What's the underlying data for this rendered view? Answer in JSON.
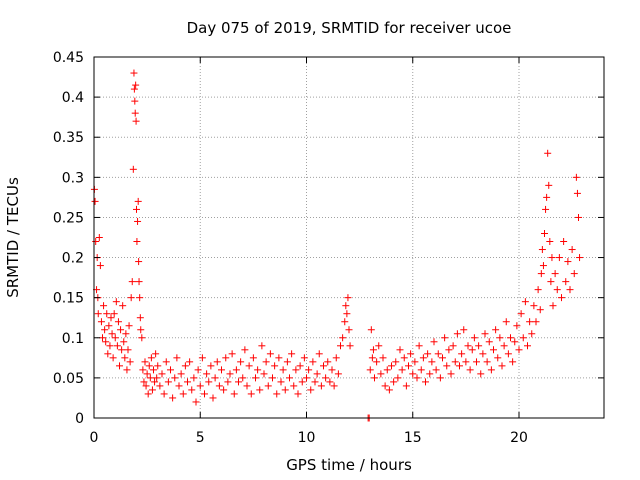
{
  "chart_data": {
    "type": "scatter",
    "title": "Day 075 of 2019, SRMTID for receiver ucoe",
    "xlabel": "GPS time / hours",
    "ylabel": "SRMTID / TECUs",
    "xlim": [
      0,
      24
    ],
    "ylim": [
      0,
      0.45
    ],
    "x_ticks": [
      0,
      5,
      10,
      15,
      20
    ],
    "x_tick_labels": [
      "0",
      "5",
      "10",
      "15",
      "20"
    ],
    "y_ticks": [
      0,
      0.05,
      0.1,
      0.15,
      0.2,
      0.25,
      0.3,
      0.35,
      0.4,
      0.45
    ],
    "y_tick_labels": [
      "0",
      "0.05",
      "0.1",
      "0.15",
      "0.2",
      "0.25",
      "0.3",
      "0.35",
      "0.4",
      "0.45"
    ],
    "grid": true,
    "marker": "+",
    "series": [
      {
        "name": "SRMTID",
        "color": "#ff0000",
        "points": [
          [
            0.02,
            0.285
          ],
          [
            0.05,
            0.27
          ],
          [
            0.08,
            0.22
          ],
          [
            0.12,
            0.16
          ],
          [
            0.15,
            0.2
          ],
          [
            0.18,
            0.15
          ],
          [
            0.2,
            0.13
          ],
          [
            0.25,
            0.225
          ],
          [
            0.3,
            0.19
          ],
          [
            0.35,
            0.12
          ],
          [
            0.4,
            0.1
          ],
          [
            0.45,
            0.14
          ],
          [
            0.5,
            0.11
          ],
          [
            0.55,
            0.095
          ],
          [
            0.6,
            0.13
          ],
          [
            0.65,
            0.08
          ],
          [
            0.7,
            0.115
          ],
          [
            0.75,
            0.09
          ],
          [
            0.8,
            0.125
          ],
          [
            0.85,
            0.105
          ],
          [
            0.9,
            0.075
          ],
          [
            0.95,
            0.13
          ],
          [
            1.0,
            0.1
          ],
          [
            1.05,
            0.145
          ],
          [
            1.1,
            0.09
          ],
          [
            1.15,
            0.12
          ],
          [
            1.2,
            0.065
          ],
          [
            1.25,
            0.11
          ],
          [
            1.3,
            0.085
          ],
          [
            1.35,
            0.14
          ],
          [
            1.4,
            0.095
          ],
          [
            1.45,
            0.075
          ],
          [
            1.5,
            0.105
          ],
          [
            1.55,
            0.06
          ],
          [
            1.6,
            0.085
          ],
          [
            1.65,
            0.115
          ],
          [
            1.7,
            0.07
          ],
          [
            1.75,
            0.15
          ],
          [
            1.8,
            0.17
          ],
          [
            1.85,
            0.31
          ],
          [
            1.88,
            0.43
          ],
          [
            1.9,
            0.41
          ],
          [
            1.92,
            0.395
          ],
          [
            1.94,
            0.38
          ],
          [
            1.96,
            0.415
          ],
          [
            1.98,
            0.37
          ],
          [
            2.0,
            0.26
          ],
          [
            2.02,
            0.22
          ],
          [
            2.05,
            0.245
          ],
          [
            2.08,
            0.27
          ],
          [
            2.1,
            0.195
          ],
          [
            2.12,
            0.17
          ],
          [
            2.15,
            0.15
          ],
          [
            2.18,
            0.125
          ],
          [
            2.2,
            0.11
          ],
          [
            2.25,
            0.1
          ],
          [
            2.3,
            0.06
          ],
          [
            2.35,
            0.045
          ],
          [
            2.4,
            0.07
          ],
          [
            2.45,
            0.04
          ],
          [
            2.5,
            0.055
          ],
          [
            2.55,
            0.03
          ],
          [
            2.6,
            0.065
          ],
          [
            2.65,
            0.05
          ],
          [
            2.7,
            0.075
          ],
          [
            2.75,
            0.035
          ],
          [
            2.8,
            0.06
          ],
          [
            2.85,
            0.045
          ],
          [
            2.9,
            0.08
          ],
          [
            2.95,
            0.05
          ],
          [
            3.0,
            0.065
          ],
          [
            3.1,
            0.04
          ],
          [
            3.2,
            0.055
          ],
          [
            3.3,
            0.03
          ],
          [
            3.4,
            0.07
          ],
          [
            3.5,
            0.045
          ],
          [
            3.6,
            0.06
          ],
          [
            3.7,
            0.025
          ],
          [
            3.8,
            0.05
          ],
          [
            3.9,
            0.075
          ],
          [
            4.0,
            0.04
          ],
          [
            4.1,
            0.055
          ],
          [
            4.2,
            0.03
          ],
          [
            4.3,
            0.065
          ],
          [
            4.4,
            0.045
          ],
          [
            4.5,
            0.07
          ],
          [
            4.6,
            0.035
          ],
          [
            4.7,
            0.05
          ],
          [
            4.8,
            0.02
          ],
          [
            4.9,
            0.06
          ],
          [
            5.0,
            0.04
          ],
          [
            5.1,
            0.075
          ],
          [
            5.2,
            0.03
          ],
          [
            5.3,
            0.055
          ],
          [
            5.4,
            0.045
          ],
          [
            5.5,
            0.065
          ],
          [
            5.6,
            0.025
          ],
          [
            5.7,
            0.05
          ],
          [
            5.8,
            0.07
          ],
          [
            5.9,
            0.04
          ],
          [
            6.0,
            0.06
          ],
          [
            6.1,
            0.035
          ],
          [
            6.2,
            0.075
          ],
          [
            6.3,
            0.045
          ],
          [
            6.4,
            0.055
          ],
          [
            6.5,
            0.08
          ],
          [
            6.6,
            0.03
          ],
          [
            6.7,
            0.06
          ],
          [
            6.8,
            0.045
          ],
          [
            6.9,
            0.07
          ],
          [
            7.0,
            0.05
          ],
          [
            7.1,
            0.085
          ],
          [
            7.2,
            0.04
          ],
          [
            7.3,
            0.065
          ],
          [
            7.4,
            0.03
          ],
          [
            7.5,
            0.075
          ],
          [
            7.6,
            0.05
          ],
          [
            7.7,
            0.06
          ],
          [
            7.8,
            0.035
          ],
          [
            7.9,
            0.09
          ],
          [
            8.0,
            0.055
          ],
          [
            8.1,
            0.07
          ],
          [
            8.2,
            0.04
          ],
          [
            8.3,
            0.08
          ],
          [
            8.4,
            0.05
          ],
          [
            8.5,
            0.065
          ],
          [
            8.6,
            0.03
          ],
          [
            8.7,
            0.075
          ],
          [
            8.8,
            0.045
          ],
          [
            8.9,
            0.06
          ],
          [
            9.0,
            0.035
          ],
          [
            9.1,
            0.07
          ],
          [
            9.2,
            0.05
          ],
          [
            9.3,
            0.08
          ],
          [
            9.4,
            0.04
          ],
          [
            9.5,
            0.06
          ],
          [
            9.6,
            0.03
          ],
          [
            9.7,
            0.065
          ],
          [
            9.8,
            0.045
          ],
          [
            9.9,
            0.075
          ],
          [
            10.0,
            0.05
          ],
          [
            10.1,
            0.06
          ],
          [
            10.2,
            0.035
          ],
          [
            10.3,
            0.07
          ],
          [
            10.4,
            0.045
          ],
          [
            10.5,
            0.055
          ],
          [
            10.6,
            0.08
          ],
          [
            10.7,
            0.04
          ],
          [
            10.8,
            0.065
          ],
          [
            10.9,
            0.05
          ],
          [
            11.0,
            0.07
          ],
          [
            11.1,
            0.045
          ],
          [
            11.2,
            0.06
          ],
          [
            11.3,
            0.04
          ],
          [
            11.4,
            0.075
          ],
          [
            11.5,
            0.055
          ],
          [
            11.6,
            0.09
          ],
          [
            11.7,
            0.1
          ],
          [
            11.8,
            0.12
          ],
          [
            11.85,
            0.14
          ],
          [
            11.9,
            0.13
          ],
          [
            11.95,
            0.15
          ],
          [
            12.0,
            0.11
          ],
          [
            12.05,
            0.09
          ],
          [
            12.9,
            0.0
          ],
          [
            12.95,
            0.0
          ],
          [
            13.0,
            0.06
          ],
          [
            13.05,
            0.11
          ],
          [
            13.1,
            0.075
          ],
          [
            13.15,
            0.085
          ],
          [
            13.2,
            0.05
          ],
          [
            13.3,
            0.07
          ],
          [
            13.4,
            0.09
          ],
          [
            13.5,
            0.055
          ],
          [
            13.6,
            0.075
          ],
          [
            13.7,
            0.04
          ],
          [
            13.8,
            0.06
          ],
          [
            13.9,
            0.035
          ],
          [
            14.0,
            0.065
          ],
          [
            14.1,
            0.045
          ],
          [
            14.2,
            0.07
          ],
          [
            14.3,
            0.05
          ],
          [
            14.4,
            0.085
          ],
          [
            14.5,
            0.06
          ],
          [
            14.6,
            0.075
          ],
          [
            14.7,
            0.04
          ],
          [
            14.8,
            0.065
          ],
          [
            14.9,
            0.08
          ],
          [
            15.0,
            0.055
          ],
          [
            15.1,
            0.07
          ],
          [
            15.2,
            0.05
          ],
          [
            15.3,
            0.09
          ],
          [
            15.4,
            0.06
          ],
          [
            15.5,
            0.075
          ],
          [
            15.6,
            0.045
          ],
          [
            15.7,
            0.08
          ],
          [
            15.8,
            0.055
          ],
          [
            15.9,
            0.07
          ],
          [
            16.0,
            0.095
          ],
          [
            16.1,
            0.06
          ],
          [
            16.2,
            0.08
          ],
          [
            16.3,
            0.05
          ],
          [
            16.4,
            0.075
          ],
          [
            16.5,
            0.1
          ],
          [
            16.6,
            0.065
          ],
          [
            16.7,
            0.085
          ],
          [
            16.8,
            0.055
          ],
          [
            16.9,
            0.09
          ],
          [
            17.0,
            0.07
          ],
          [
            17.1,
            0.105
          ],
          [
            17.2,
            0.065
          ],
          [
            17.3,
            0.08
          ],
          [
            17.4,
            0.11
          ],
          [
            17.5,
            0.07
          ],
          [
            17.6,
            0.09
          ],
          [
            17.7,
            0.06
          ],
          [
            17.8,
            0.085
          ],
          [
            17.9,
            0.1
          ],
          [
            18.0,
            0.07
          ],
          [
            18.1,
            0.09
          ],
          [
            18.2,
            0.055
          ],
          [
            18.3,
            0.08
          ],
          [
            18.4,
            0.105
          ],
          [
            18.5,
            0.07
          ],
          [
            18.6,
            0.095
          ],
          [
            18.7,
            0.06
          ],
          [
            18.8,
            0.085
          ],
          [
            18.9,
            0.11
          ],
          [
            19.0,
            0.075
          ],
          [
            19.1,
            0.1
          ],
          [
            19.2,
            0.065
          ],
          [
            19.3,
            0.09
          ],
          [
            19.4,
            0.12
          ],
          [
            19.5,
            0.08
          ],
          [
            19.6,
            0.1
          ],
          [
            19.7,
            0.07
          ],
          [
            19.8,
            0.095
          ],
          [
            19.9,
            0.115
          ],
          [
            20.0,
            0.085
          ],
          [
            20.1,
            0.13
          ],
          [
            20.2,
            0.1
          ],
          [
            20.3,
            0.145
          ],
          [
            20.4,
            0.09
          ],
          [
            20.5,
            0.12
          ],
          [
            20.6,
            0.105
          ],
          [
            20.7,
            0.14
          ],
          [
            20.8,
            0.12
          ],
          [
            20.9,
            0.16
          ],
          [
            21.0,
            0.135
          ],
          [
            21.05,
            0.18
          ],
          [
            21.1,
            0.21
          ],
          [
            21.15,
            0.19
          ],
          [
            21.2,
            0.23
          ],
          [
            21.25,
            0.26
          ],
          [
            21.3,
            0.275
          ],
          [
            21.35,
            0.33
          ],
          [
            21.4,
            0.29
          ],
          [
            21.45,
            0.22
          ],
          [
            21.5,
            0.17
          ],
          [
            21.55,
            0.2
          ],
          [
            21.6,
            0.14
          ],
          [
            21.7,
            0.18
          ],
          [
            21.8,
            0.16
          ],
          [
            21.9,
            0.2
          ],
          [
            22.0,
            0.15
          ],
          [
            22.1,
            0.22
          ],
          [
            22.2,
            0.17
          ],
          [
            22.3,
            0.195
          ],
          [
            22.4,
            0.16
          ],
          [
            22.5,
            0.21
          ],
          [
            22.6,
            0.18
          ],
          [
            22.7,
            0.3
          ],
          [
            22.75,
            0.28
          ],
          [
            22.8,
            0.25
          ],
          [
            22.85,
            0.2
          ]
        ]
      }
    ]
  }
}
